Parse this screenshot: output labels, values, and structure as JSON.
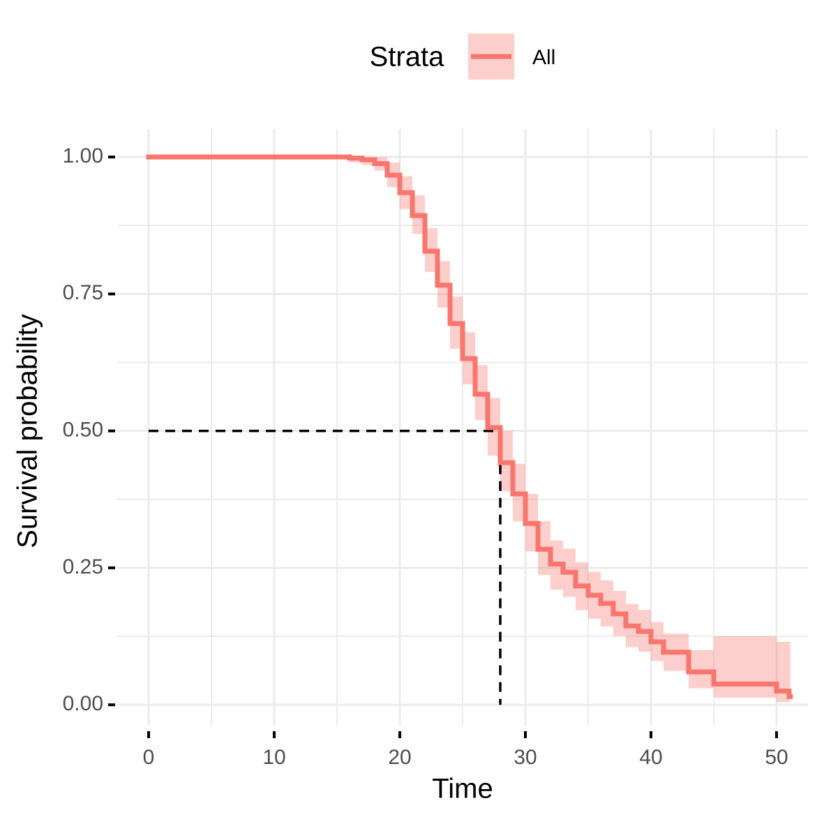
{
  "chart_data": {
    "type": "survival-step",
    "x_label": "Time",
    "y_label": "Survival probability",
    "legend_title": "Strata",
    "legend_position": "top",
    "xlim": [
      -2.5,
      52.5
    ],
    "ylim": [
      -0.038,
      1.051
    ],
    "xticks": [
      0,
      10,
      20,
      30,
      40,
      50
    ],
    "xminor": [
      5,
      15,
      25,
      35,
      45
    ],
    "yticks": [
      {
        "value": 0,
        "label": "0.00"
      },
      {
        "value": 0.25,
        "label": "0.25"
      },
      {
        "value": 0.5,
        "label": "0.50"
      },
      {
        "value": 0.75,
        "label": "0.75"
      },
      {
        "value": 1,
        "label": "1.00"
      }
    ],
    "yminor": [
      0.125,
      0.375,
      0.625,
      0.875
    ],
    "grid": true,
    "median": {
      "x": 28,
      "y": 0.5
    },
    "series": [
      {
        "name": "All",
        "color": "#f8766d",
        "x": [
          0,
          16,
          17,
          18,
          19,
          20,
          21,
          22,
          23,
          24,
          25,
          26,
          27,
          28,
          29,
          30,
          31,
          32,
          33,
          34,
          35,
          36,
          37,
          38,
          39,
          40,
          41,
          43,
          45,
          50,
          51
        ],
        "values": [
          1,
          0.998,
          0.995,
          0.988,
          0.967,
          0.935,
          0.893,
          0.828,
          0.766,
          0.696,
          0.632,
          0.567,
          0.506,
          0.442,
          0.385,
          0.331,
          0.284,
          0.257,
          0.242,
          0.217,
          0.2,
          0.185,
          0.166,
          0.144,
          0.134,
          0.115,
          0.096,
          0.06,
          0.038,
          0.025,
          0.015
        ],
        "lower": [
          1,
          0.99,
          0.985,
          0.975,
          0.945,
          0.905,
          0.86,
          0.79,
          0.725,
          0.65,
          0.585,
          0.52,
          0.455,
          0.39,
          0.335,
          0.28,
          0.237,
          0.21,
          0.197,
          0.173,
          0.157,
          0.143,
          0.126,
          0.105,
          0.097,
          0.08,
          0.062,
          0.03,
          0.013,
          0.005,
          0.005
        ],
        "upper": [
          1,
          1,
          1,
          1,
          0.99,
          0.965,
          0.93,
          0.87,
          0.81,
          0.745,
          0.68,
          0.62,
          0.56,
          0.5,
          0.44,
          0.385,
          0.335,
          0.3,
          0.285,
          0.26,
          0.243,
          0.227,
          0.208,
          0.184,
          0.173,
          0.151,
          0.13,
          0.1,
          0.125,
          0.115,
          0.115
        ]
      }
    ]
  }
}
